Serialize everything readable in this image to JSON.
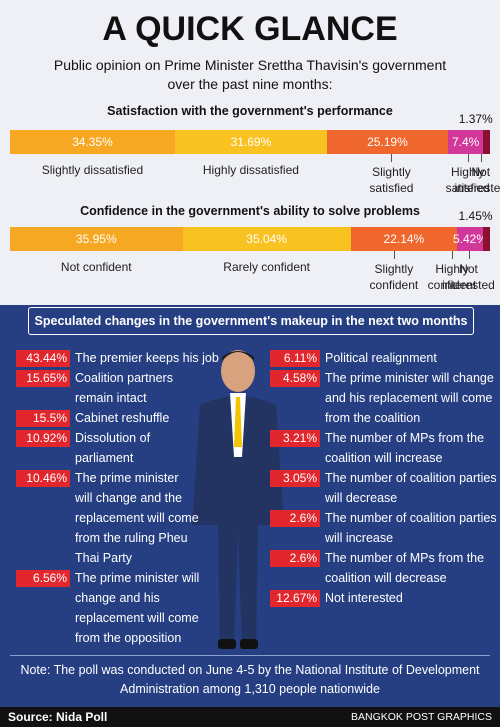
{
  "header": {
    "title": "A QUICK GLANCE",
    "subtitle_line1": "Public opinion on Prime Minister Srettha Thavisin's government",
    "subtitle_line2": "over the past nine months:"
  },
  "colors": {
    "orange": "#f7a823",
    "yellow": "#f8c221",
    "dark_orange": "#f0672e",
    "pink": "#d2389a",
    "dark_red": "#8a1230",
    "navy": "#263f83",
    "red_badge": "#e1262d"
  },
  "chart_data": [
    {
      "type": "bar",
      "stacked": true,
      "title": "Satisfaction with the government's performance",
      "categories": [
        "Slightly dissatisfied",
        "Highly dissatisfied",
        "Slightly satisfied",
        "Highly satisfied",
        "Not interested"
      ],
      "values": [
        34.35,
        31.69,
        25.19,
        7.4,
        1.37
      ],
      "value_labels": [
        "34.35%",
        "31.69%",
        "25.19%",
        "7.4%",
        "1.37%"
      ],
      "category_lines": [
        [
          "Slightly dissatisfied"
        ],
        [
          "Highly dissatisfied"
        ],
        [
          "Slightly",
          "satisfied"
        ],
        [
          "Highly",
          "satisfied"
        ],
        [
          "Not",
          "interested"
        ]
      ]
    },
    {
      "type": "bar",
      "stacked": true,
      "title": "Confidence in the government's ability to solve problems",
      "categories": [
        "Not confident",
        "Rarely confident",
        "Slightly confident",
        "Highly confident",
        "Not interested"
      ],
      "values": [
        35.95,
        35.04,
        22.14,
        5.42,
        1.45
      ],
      "value_labels": [
        "35.95%",
        "35.04%",
        "22.14%",
        "5.42%",
        "1.45%"
      ],
      "category_lines": [
        [
          "Not confident"
        ],
        [
          "Rarely confident"
        ],
        [
          "Slightly",
          "confident"
        ],
        [
          "Highly",
          "confident"
        ],
        [
          "Not",
          "interested"
        ]
      ]
    },
    {
      "type": "table",
      "title": "Speculated changes in the government's makeup in the next two months",
      "rows": [
        {
          "value": "43.44%",
          "label": "The premier keeps his job"
        },
        {
          "value": "15.65%",
          "label": "Coalition partners remain intact"
        },
        {
          "value": "15.5%",
          "label": "Cabinet reshuffle"
        },
        {
          "value": "10.92%",
          "label": "Dissolution of parliament"
        },
        {
          "value": "10.46%",
          "label": "The prime minister will change and the replacement will come from the ruling Pheu Thai Party"
        },
        {
          "value": "6.56%",
          "label": "The prime minister will change and his replacement will come from the opposition"
        },
        {
          "value": "6.11%",
          "label": "Political realignment"
        },
        {
          "value": "4.58%",
          "label": "The prime minister will change and his replacement will come from the coalition"
        },
        {
          "value": "3.21%",
          "label": "The number of MPs from the coalition will increase"
        },
        {
          "value": "3.05%",
          "label": "The number of coalition parties will decrease"
        },
        {
          "value": "2.6%",
          "label": "The number of coalition parties will increase"
        },
        {
          "value": "2.6%",
          "label": "The number of MPs from the coalition will decrease"
        },
        {
          "value": "12.67%",
          "label": "Not interested"
        }
      ]
    }
  ],
  "speculation": {
    "banner": "Speculated changes in the government's makeup in the next two months",
    "left": [
      {
        "value": "43.44%",
        "lines": [
          "The premier keeps his job"
        ]
      },
      {
        "value": "15.65%",
        "lines": [
          "Coalition partners",
          "remain intact"
        ]
      },
      {
        "value": "15.5%",
        "lines": [
          "Cabinet reshuffle"
        ]
      },
      {
        "value": "10.92%",
        "lines": [
          "Dissolution of",
          "parliament"
        ]
      },
      {
        "value": "10.46%",
        "lines": [
          "The prime minister",
          "will change and the",
          "replacement will come",
          "from the ruling Pheu",
          "Thai Party"
        ]
      },
      {
        "value": "6.56%",
        "lines": [
          "The prime minister will",
          "change and his",
          "replacement will come",
          "from the opposition"
        ]
      }
    ],
    "right": [
      {
        "value": "6.11%",
        "lines": [
          "Political realignment"
        ]
      },
      {
        "value": "4.58%",
        "lines": [
          "The prime minister will change",
          "and his replacement will come",
          "from the coalition"
        ]
      },
      {
        "value": "3.21%",
        "lines": [
          "The number of MPs from the",
          "coalition will increase"
        ]
      },
      {
        "value": "3.05%",
        "lines": [
          "The number of coalition parties",
          "will decrease"
        ]
      },
      {
        "value": "2.6%",
        "lines": [
          "The number of coalition parties",
          "will increase"
        ]
      },
      {
        "value": "2.6%",
        "lines": [
          "The number of MPs from the",
          "coalition will decrease"
        ]
      },
      {
        "value": "12.67%",
        "lines": [
          "Not interested"
        ]
      }
    ]
  },
  "note": {
    "line1": "Note: The poll was conducted on June 4-5 by the National Institute of Development",
    "line2": "Administration among 1,310 people nationwide"
  },
  "footer": {
    "source": "Source: Nida Poll",
    "credit": "BANGKOK POST GRAPHICS"
  }
}
